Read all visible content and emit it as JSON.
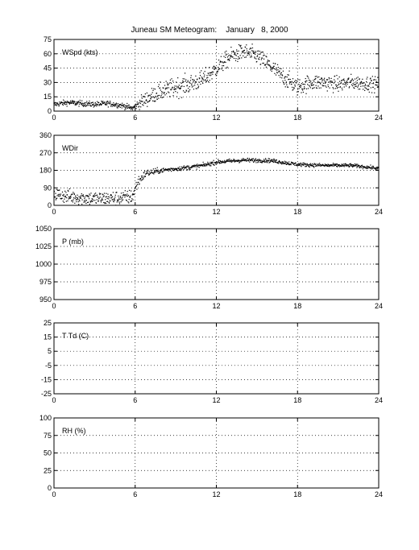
{
  "title": "Juneau SM Meteogram:    January   8, 2000",
  "chart_data": [
    {
      "type": "scatter",
      "label": "WSpd (kts)",
      "xlim": [
        0,
        24
      ],
      "ylim": [
        0,
        75
      ],
      "xticks": [
        0,
        6,
        12,
        18,
        24
      ],
      "yticks": [
        0,
        15,
        30,
        45,
        60,
        75
      ],
      "grid": true,
      "trend": [
        [
          0,
          7
        ],
        [
          1,
          9
        ],
        [
          2,
          8
        ],
        [
          3,
          7
        ],
        [
          4,
          8
        ],
        [
          5,
          6
        ],
        [
          5.8,
          3
        ],
        [
          6.5,
          10
        ],
        [
          7.5,
          18
        ],
        [
          9,
          25
        ],
        [
          10,
          28
        ],
        [
          11,
          33
        ],
        [
          12,
          44
        ],
        [
          13,
          57
        ],
        [
          14,
          62
        ],
        [
          15,
          58
        ],
        [
          16,
          47
        ],
        [
          17,
          35
        ],
        [
          18,
          25
        ],
        [
          19,
          30
        ],
        [
          20,
          30
        ],
        [
          21,
          28
        ],
        [
          22,
          30
        ],
        [
          23,
          29
        ],
        [
          24,
          28
        ]
      ],
      "spread": [
        [
          0,
          2
        ],
        [
          6,
          2
        ],
        [
          6.5,
          5
        ],
        [
          9,
          7
        ],
        [
          12,
          6
        ],
        [
          15,
          6
        ],
        [
          18,
          6
        ],
        [
          24,
          5
        ]
      ]
    },
    {
      "type": "scatter",
      "label": "WDir",
      "xlim": [
        0,
        24
      ],
      "ylim": [
        0,
        360
      ],
      "xticks": [
        0,
        6,
        12,
        18,
        24
      ],
      "yticks": [
        0,
        90,
        180,
        270,
        360
      ],
      "grid": true,
      "trend": [
        [
          0,
          60
        ],
        [
          1,
          45
        ],
        [
          2,
          40
        ],
        [
          3,
          35
        ],
        [
          4,
          35
        ],
        [
          5,
          38
        ],
        [
          5.8,
          45
        ],
        [
          6.2,
          120
        ],
        [
          6.8,
          165
        ],
        [
          8,
          180
        ],
        [
          10,
          195
        ],
        [
          11,
          205
        ],
        [
          12,
          222
        ],
        [
          14,
          232
        ],
        [
          16,
          230
        ],
        [
          18,
          210
        ],
        [
          20,
          205
        ],
        [
          22,
          205
        ],
        [
          24,
          190
        ]
      ],
      "spread": [
        [
          0,
          25
        ],
        [
          6,
          25
        ],
        [
          6.5,
          15
        ],
        [
          8,
          8
        ],
        [
          24,
          6
        ]
      ]
    },
    {
      "type": "line",
      "label": "P (mb)",
      "xlim": [
        0,
        24
      ],
      "ylim": [
        950,
        1050
      ],
      "xticks": [
        0,
        6,
        12,
        18,
        24
      ],
      "yticks": [
        950,
        975,
        1000,
        1025,
        1050
      ],
      "grid": true,
      "series": []
    },
    {
      "type": "line",
      "label": "T Td (C)",
      "xlim": [
        0,
        24
      ],
      "ylim": [
        -25,
        25
      ],
      "xticks": [
        0,
        6,
        12,
        18,
        24
      ],
      "yticks": [
        -25,
        -15,
        -5,
        5,
        15,
        25
      ],
      "grid": true,
      "series": []
    },
    {
      "type": "line",
      "label": "RH (%)",
      "xlim": [
        0,
        24
      ],
      "ylim": [
        0,
        100
      ],
      "xticks": [
        0,
        6,
        12,
        18,
        24
      ],
      "yticks": [
        0,
        25,
        50,
        75,
        100
      ],
      "grid": true,
      "series": []
    }
  ]
}
